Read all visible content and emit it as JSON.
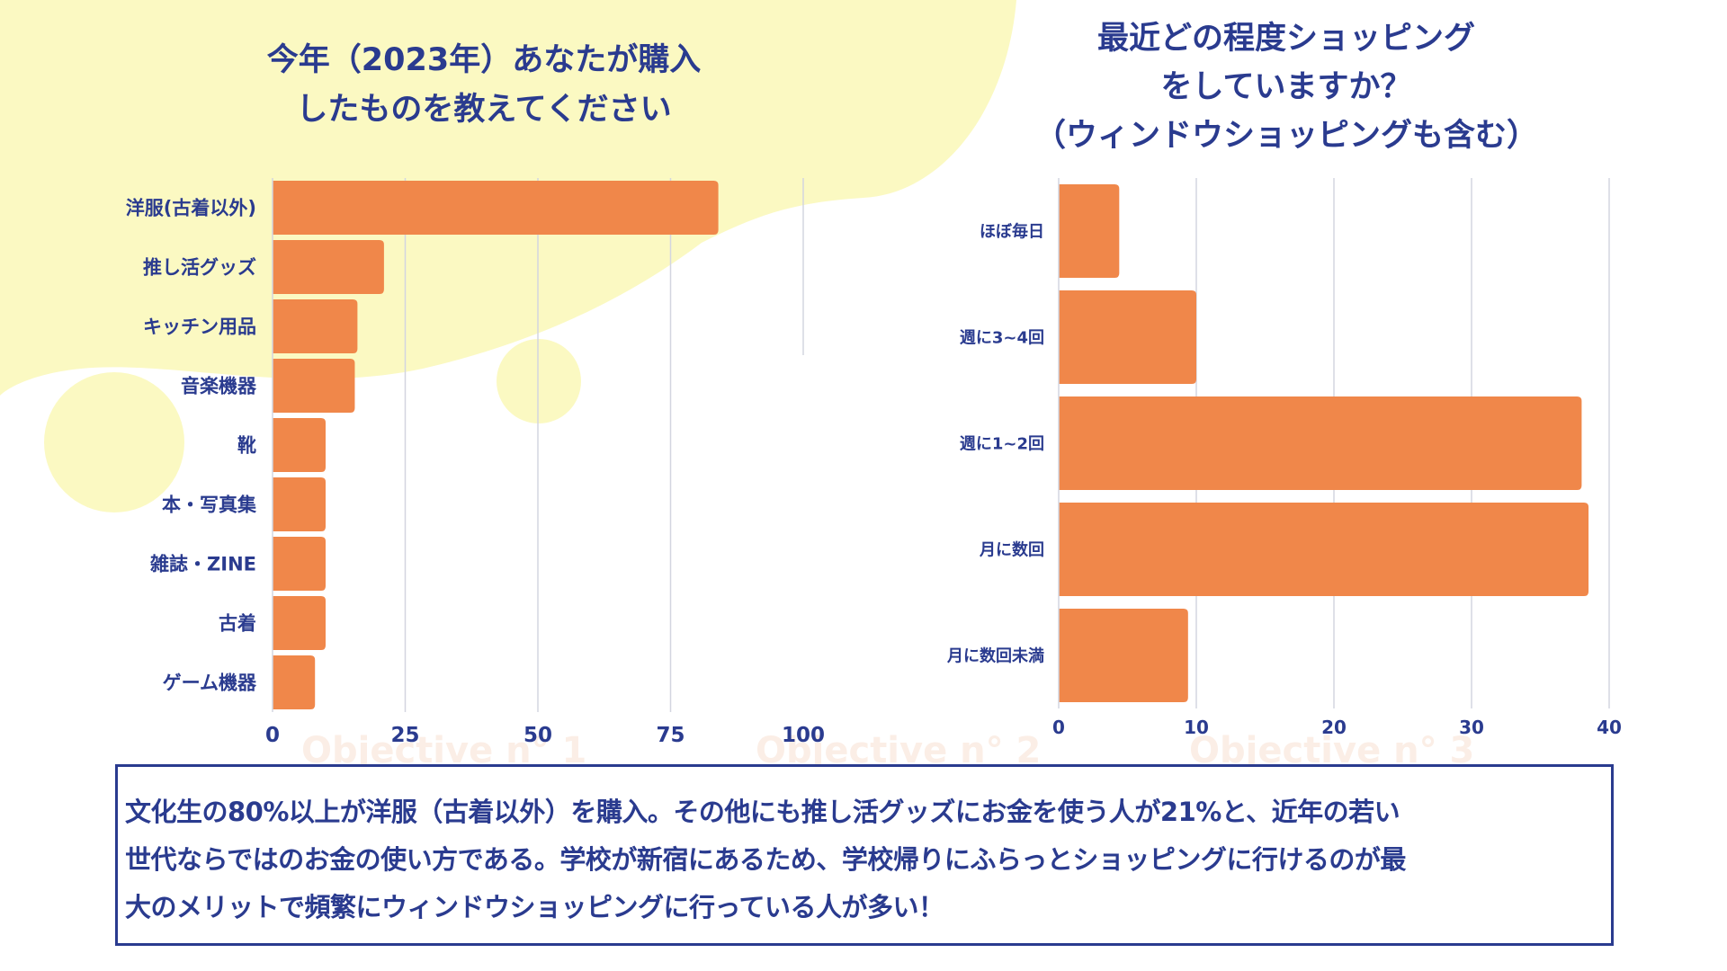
{
  "left_panel": {
    "title_line1": "今年（2023年）あなたが購入",
    "title_line2": "したものを教えてください"
  },
  "right_panel": {
    "title_line1": "最近どの程度ショッピング",
    "title_line2": "をしていますか？",
    "title_line3": "（ウィンドウショッピングも含む）"
  },
  "summary": {
    "line1": "文化生の80%以上が洋服（古着以外）を購入。その他にも推し活グッズにお金を使う人が21%と、近年の若い",
    "line2": "世代ならではのお金の使い方である。学校が新宿にあるため、学校帰りにふらっとショッピングに行けるのが最",
    "line3": "大のメリットで頻繁にウィンドウショッピングに行っている人が多い！"
  },
  "watermarks": [
    "Objective n° 1",
    "Objective n° 2",
    "Objective n° 3"
  ],
  "colors": {
    "bar": "#f0874a",
    "text": "#2a3b8f",
    "grid": "#d3d5e0",
    "background_blob": "#fbf9c2"
  },
  "chart_data": [
    {
      "type": "bar",
      "orientation": "horizontal",
      "title": "今年（2023年）あなたが購入したものを教えてください",
      "categories": [
        "洋服(古着以外)",
        "推し活グッズ",
        "キッチン用品",
        "音楽機器",
        "靴",
        "本・写真集",
        "雑誌・ZINE",
        "古着",
        "ゲーム機器"
      ],
      "values": [
        84,
        21,
        16,
        15.5,
        10,
        10,
        10,
        10,
        8
      ],
      "xlabel": "",
      "ylabel": "",
      "xlim": [
        0,
        100
      ],
      "xticks": [
        "0",
        "25",
        "50",
        "75",
        "100"
      ],
      "xtick_values": [
        0,
        25,
        50,
        75,
        100
      ],
      "grid": true,
      "legend": "none"
    },
    {
      "type": "bar",
      "orientation": "horizontal",
      "title": "最近どの程度ショッピングをしていますか？（ウィンドウショッピングも含む）",
      "categories": [
        "ほぼ毎日",
        "週に3~4回",
        "週に1~2回",
        "月に数回",
        "月に数回未満"
      ],
      "values": [
        4.4,
        10,
        38,
        38.5,
        9.4
      ],
      "xlabel": "",
      "ylabel": "",
      "xlim": [
        0,
        40
      ],
      "xticks": [
        "0",
        "10",
        "20",
        "30",
        "40"
      ],
      "xtick_values": [
        0,
        10,
        20,
        30,
        40
      ],
      "grid": true,
      "legend": "none"
    }
  ]
}
